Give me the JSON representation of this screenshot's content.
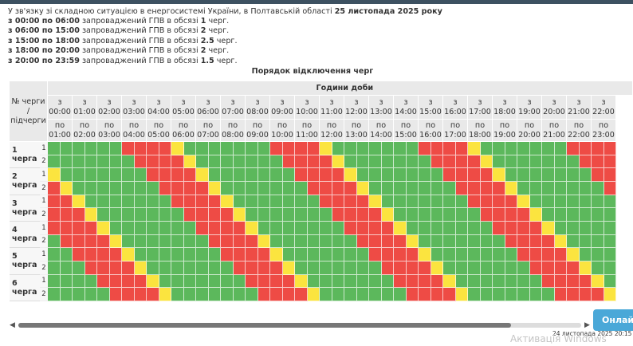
{
  "intro": {
    "text": "У зв'язку зі складною ситуацією в енергосистемі України, в Полтавській області ",
    "date": "25 листопада 2025 року"
  },
  "periods": [
    {
      "range": "з 00:00 по 06:00",
      "text": " запроваджений ГПВ в обсязі ",
      "amount": "1",
      "suffix": " черг."
    },
    {
      "range": "з 06:00 по 15:00",
      "text": " запроваджений ГПВ в обсязі ",
      "amount": "2",
      "suffix": " черг."
    },
    {
      "range": "з 15:00 по 18:00",
      "text": " запроваджений ГПВ в обсязі ",
      "amount": "2.5",
      "suffix": " черг."
    },
    {
      "range": "з 18:00 по 20:00",
      "text": " запроваджений ГПВ в обсязі ",
      "amount": "2",
      "suffix": " черг."
    },
    {
      "range": "з 20:00 по 23:59",
      "text": " запроваджений ГПВ в обсязі ",
      "amount": "1.5",
      "suffix": " черг."
    }
  ],
  "table": {
    "title": "Порядок відключення черг",
    "corner": "№ черги / підчерги",
    "hours_header": "Години доби",
    "from_prefix": "з",
    "to_prefix": "по",
    "hours": [
      {
        "from": "00:00",
        "to": "01:00"
      },
      {
        "from": "01:00",
        "to": "02:00"
      },
      {
        "from": "02:00",
        "to": "03:00"
      },
      {
        "from": "03:00",
        "to": "04:00"
      },
      {
        "from": "04:00",
        "to": "05:00"
      },
      {
        "from": "05:00",
        "to": "06:00"
      },
      {
        "from": "06:00",
        "to": "07:00"
      },
      {
        "from": "07:00",
        "to": "08:00"
      },
      {
        "from": "08:00",
        "to": "09:00"
      },
      {
        "from": "09:00",
        "to": "10:00"
      },
      {
        "from": "10:00",
        "to": "11:00"
      },
      {
        "from": "11:00",
        "to": "12:00"
      },
      {
        "from": "12:00",
        "to": "13:00"
      },
      {
        "from": "13:00",
        "to": "14:00"
      },
      {
        "from": "14:00",
        "to": "15:00"
      },
      {
        "from": "15:00",
        "to": "16:00"
      },
      {
        "from": "16:00",
        "to": "17:00"
      },
      {
        "from": "17:00",
        "to": "18:00"
      },
      {
        "from": "18:00",
        "to": "19:00"
      },
      {
        "from": "19:00",
        "to": "20:00"
      },
      {
        "from": "20:00",
        "to": "21:00"
      },
      {
        "from": "21:00",
        "to": "22:00"
      },
      {
        "from": "22:00",
        "to": "23:00"
      }
    ],
    "state_colors": {
      "G": "#5cb85c",
      "R": "#ee4b45",
      "Y": "#fbe43f"
    },
    "queues": [
      {
        "label": "1 черга",
        "subqueues": [
          {
            "name": "1",
            "slots": "GGGGGGRRRRYGGGGGGGRRRRYGGGGGGGRRRRYGGGGGGGRRRR"
          },
          {
            "name": "2",
            "slots": "GGGGGGGRRRRYGGGGGGGRRRRYGGGGGGGRRRRYGGGGGGGRRR"
          }
        ]
      },
      {
        "label": "2 черга",
        "subqueues": [
          {
            "name": "1",
            "slots": "YGGGGGGGRRRRYGGGGGGGRRRRYGGGGGGGRRRRYGGGGGGGRR"
          },
          {
            "name": "2",
            "slots": "RYGGGGGGGRRRRYGGGGGGGRRRRYGGGGGGGRRRRYGGGGGGGR"
          }
        ]
      },
      {
        "label": "3 черга",
        "subqueues": [
          {
            "name": "1",
            "slots": "RRYGGGGGGGRRRRYGGGGGGGRRRRYGGGGGGGRRRRYGGGGGGG"
          },
          {
            "name": "2",
            "slots": "RRRYGGGGGGGRRRRYGGGGGGGRRRRYGGGGGGGRRRRYGGGGGG"
          }
        ]
      },
      {
        "label": "4 черга",
        "subqueues": [
          {
            "name": "1",
            "slots": "RRRRYGGGGGGGRRRRYGGGGGGGRRRRYGGGGGGGRRRRYGGGGG"
          },
          {
            "name": "2",
            "slots": "GRRRRYGGGGGGGRRRRYGGGGGGGRRRRYGGGGGGGRRRRYGGGG"
          }
        ]
      },
      {
        "label": "5 черга",
        "subqueues": [
          {
            "name": "1",
            "slots": "GGRRRRYGGGGGGGRRRRYGGGGGGGRRRRYGGGGGGGRRRRYGGG"
          },
          {
            "name": "2",
            "slots": "GGGRRRRYGGGGGGGRRRRYGGGGGGGRRRRYGGGGGGGRRRRYGG"
          }
        ]
      },
      {
        "label": "6 черга",
        "subqueues": [
          {
            "name": "1",
            "slots": "GGGGRRRRYGGGGGGGRRRRYGGGGGGGRRRRYGGGGGGGRRRRYG"
          },
          {
            "name": "2",
            "slots": "GGGGGRRRRYGGGGGGGRRRRYGGGGGGGRRRRYGGGGGGGRRRRY"
          }
        ]
      }
    ]
  },
  "footer": {
    "button": "Онлайн",
    "timestamp": "24 листопада 2025 20:15",
    "watermark": "Активація Windows"
  }
}
